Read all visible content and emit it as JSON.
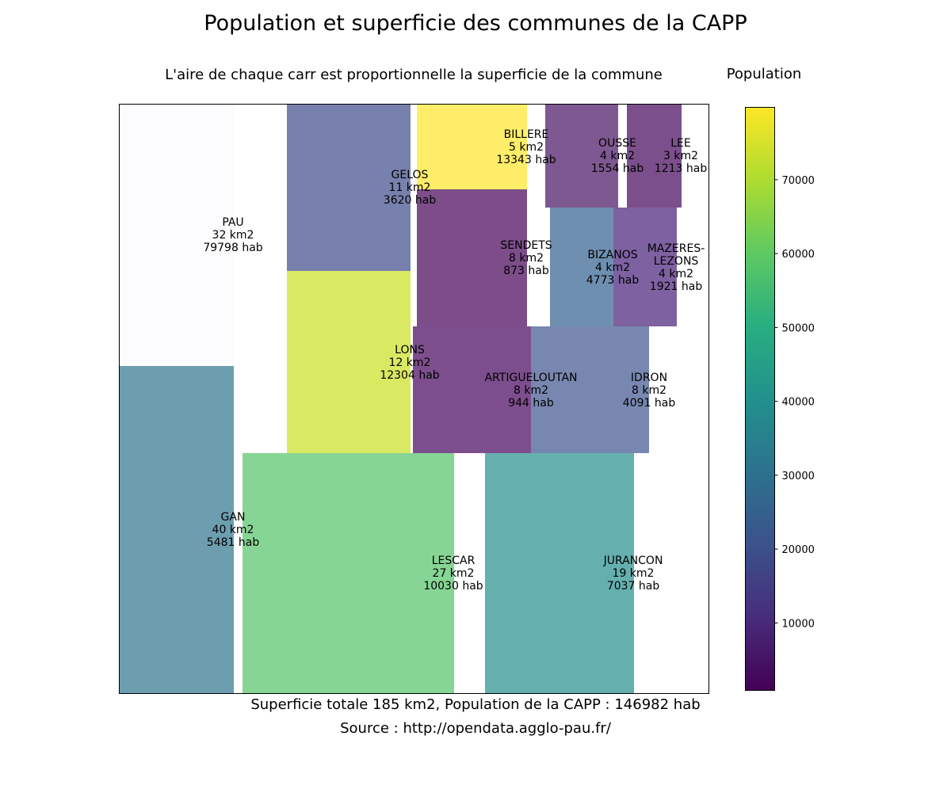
{
  "chart_data": {
    "type": "treemap",
    "title": "Population et superficie des communes de la CAPP",
    "subtitle": "L'aire de chaque carr est proportionnelle  la superficie de la commune",
    "colorbar": {
      "label": "Population",
      "colormap": "viridis",
      "min": 873,
      "max": 79798,
      "ticks": [
        10000,
        20000,
        30000,
        40000,
        50000,
        60000,
        70000
      ]
    },
    "footer_total": "Superficie totale 185 km2, Population de la CAPP : 146982 hab",
    "footer_source": "Source : http://opendata.agglo-pau.fr/",
    "communes": [
      {
        "name": "PAU",
        "area_km2": 32,
        "population": 79798,
        "area_label": "32 km2",
        "pop_label": "79798 hab",
        "color": "#fcfcfe"
      },
      {
        "name": "GAN",
        "area_km2": 40,
        "population": 5481,
        "area_label": "40 km2",
        "pop_label": "5481 hab",
        "color": "#6d9eb0"
      },
      {
        "name": "GELOS",
        "area_km2": 11,
        "population": 3620,
        "area_label": "11 km2",
        "pop_label": "3620 hab",
        "color": "#7880ad"
      },
      {
        "name": "LONS",
        "area_km2": 12,
        "population": 12304,
        "area_label": "12 km2",
        "pop_label": "12304 hab",
        "color": "#d9e961"
      },
      {
        "name": "LESCAR",
        "area_km2": 27,
        "population": 10030,
        "area_label": "27 km2",
        "pop_label": "10030 hab",
        "color": "#87d594"
      },
      {
        "name": "BILLERE",
        "area_km2": 5,
        "population": 13343,
        "area_label": "5 km2",
        "pop_label": "13343 hab",
        "color": "#feed68"
      },
      {
        "name": "SENDETS",
        "area_km2": 8,
        "population": 873,
        "area_label": "8 km2",
        "pop_label": "873 hab",
        "color": "#7c4d88"
      },
      {
        "name": "ARTIGUELOUTAN",
        "area_km2": 8,
        "population": 944,
        "area_label": "8 km2",
        "pop_label": "944 hab",
        "color": "#7d4e8d"
      },
      {
        "name": "JURANCON",
        "area_km2": 19,
        "population": 7037,
        "area_label": "19 km2",
        "pop_label": "7037 hab",
        "color": "#65b0af"
      },
      {
        "name": "OUSSE",
        "area_km2": 4,
        "population": 1554,
        "area_label": "4 km2",
        "pop_label": "1554 hab",
        "color": "#7e5890"
      },
      {
        "name": "LEE",
        "area_km2": 3,
        "population": 1213,
        "area_label": "3 km2",
        "pop_label": "1213 hab",
        "color": "#7b4f8b"
      },
      {
        "name": "BIZANOS",
        "area_km2": 4,
        "population": 4773,
        "area_label": "4 km2",
        "pop_label": "4773 hab",
        "color": "#6f8fb0"
      },
      {
        "name": "MAZERES-\nLEZONS",
        "area_km2": 4,
        "population": 1921,
        "area_label": "4 km2",
        "pop_label": "1921 hab",
        "color": "#7d61a0"
      },
      {
        "name": "IDRON",
        "area_km2": 8,
        "population": 4091,
        "area_label": "8 km2",
        "pop_label": "4091 hab",
        "color": "#7787b0"
      }
    ]
  }
}
